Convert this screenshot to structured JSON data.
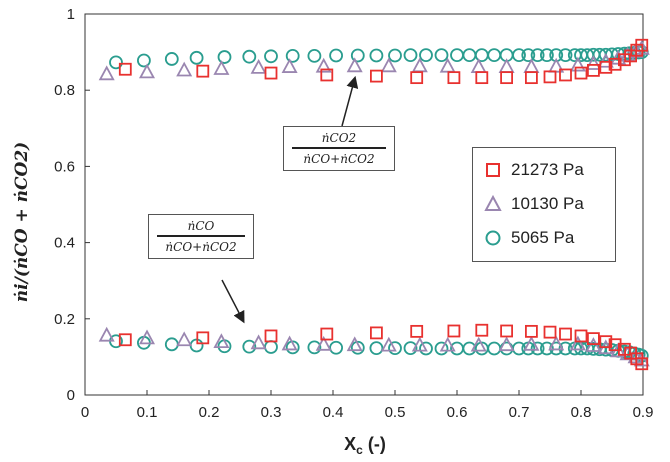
{
  "chart_data": {
    "type": "scatter",
    "xlabel": "X",
    "xlabel_sub": "c",
    "xlabel_unit": " (-)",
    "ylabel": "ṅi/(ṅCO + ṅCO2)",
    "xlim": [
      0,
      0.9
    ],
    "ylim": [
      0,
      1
    ],
    "xticks": [
      "0",
      "0.1",
      "0.2",
      "0.3",
      "0.4",
      "0.5",
      "0.6",
      "0.7",
      "0.8",
      "0.9"
    ],
    "yticks": [
      "0",
      "0.2",
      "0.4",
      "0.6",
      "0.8",
      "1"
    ],
    "grid": false,
    "legend_position": "right",
    "series": [
      {
        "name": "21273 Pa",
        "marker": "square",
        "color": "#e8312f",
        "upper": {
          "x": [
            0.065,
            0.19,
            0.3,
            0.39,
            0.47,
            0.535,
            0.595,
            0.64,
            0.68,
            0.72,
            0.75,
            0.775,
            0.8,
            0.82,
            0.84,
            0.855,
            0.87,
            0.88,
            0.89,
            0.898
          ],
          "y": [
            0.855,
            0.85,
            0.845,
            0.84,
            0.837,
            0.833,
            0.833,
            0.833,
            0.833,
            0.833,
            0.835,
            0.84,
            0.845,
            0.852,
            0.86,
            0.868,
            0.88,
            0.89,
            0.905,
            0.918
          ]
        },
        "lower": {
          "x": [
            0.065,
            0.19,
            0.3,
            0.39,
            0.47,
            0.535,
            0.595,
            0.64,
            0.68,
            0.72,
            0.75,
            0.775,
            0.8,
            0.82,
            0.84,
            0.855,
            0.87,
            0.88,
            0.89,
            0.898
          ],
          "y": [
            0.145,
            0.15,
            0.155,
            0.16,
            0.163,
            0.167,
            0.168,
            0.17,
            0.168,
            0.167,
            0.165,
            0.16,
            0.155,
            0.148,
            0.14,
            0.132,
            0.12,
            0.11,
            0.095,
            0.082
          ]
        }
      },
      {
        "name": "10130 Pa",
        "marker": "triangle",
        "color": "#9a86b0",
        "upper": {
          "x": [
            0.035,
            0.1,
            0.16,
            0.22,
            0.28,
            0.33,
            0.385,
            0.435,
            0.49,
            0.54,
            0.585,
            0.635,
            0.68,
            0.72,
            0.76,
            0.795,
            0.82,
            0.84,
            0.86,
            0.875,
            0.888,
            0.898
          ],
          "y": [
            0.843,
            0.848,
            0.853,
            0.857,
            0.86,
            0.862,
            0.863,
            0.864,
            0.864,
            0.864,
            0.863,
            0.862,
            0.862,
            0.862,
            0.863,
            0.866,
            0.87,
            0.876,
            0.884,
            0.892,
            0.902,
            0.91
          ]
        },
        "lower": {
          "x": [
            0.035,
            0.1,
            0.16,
            0.22,
            0.28,
            0.33,
            0.385,
            0.435,
            0.49,
            0.54,
            0.585,
            0.635,
            0.68,
            0.72,
            0.76,
            0.795,
            0.82,
            0.84,
            0.86,
            0.875,
            0.888,
            0.898
          ],
          "y": [
            0.157,
            0.15,
            0.145,
            0.14,
            0.137,
            0.134,
            0.133,
            0.132,
            0.131,
            0.131,
            0.131,
            0.131,
            0.132,
            0.133,
            0.134,
            0.134,
            0.13,
            0.124,
            0.116,
            0.108,
            0.1,
            0.092
          ]
        }
      },
      {
        "name": "5065 Pa",
        "marker": "circle",
        "color": "#2a9d8f",
        "upper": {
          "x": [
            0.05,
            0.095,
            0.14,
            0.18,
            0.225,
            0.265,
            0.3,
            0.335,
            0.37,
            0.405,
            0.44,
            0.47,
            0.5,
            0.525,
            0.55,
            0.575,
            0.6,
            0.62,
            0.64,
            0.66,
            0.68,
            0.7,
            0.715,
            0.73,
            0.745,
            0.76,
            0.775,
            0.79,
            0.8,
            0.81,
            0.82,
            0.83,
            0.84,
            0.85,
            0.86,
            0.87,
            0.878,
            0.886,
            0.893,
            0.898
          ],
          "y": [
            0.873,
            0.878,
            0.882,
            0.885,
            0.887,
            0.888,
            0.889,
            0.89,
            0.89,
            0.891,
            0.891,
            0.891,
            0.891,
            0.892,
            0.892,
            0.892,
            0.892,
            0.892,
            0.892,
            0.892,
            0.892,
            0.892,
            0.892,
            0.892,
            0.892,
            0.892,
            0.892,
            0.892,
            0.892,
            0.892,
            0.893,
            0.893,
            0.893,
            0.894,
            0.895,
            0.896,
            0.897,
            0.898,
            0.899,
            0.9
          ]
        },
        "lower": {
          "x": [
            0.05,
            0.095,
            0.14,
            0.18,
            0.225,
            0.265,
            0.3,
            0.335,
            0.37,
            0.405,
            0.44,
            0.47,
            0.5,
            0.525,
            0.55,
            0.575,
            0.6,
            0.62,
            0.64,
            0.66,
            0.68,
            0.7,
            0.715,
            0.73,
            0.745,
            0.76,
            0.775,
            0.79,
            0.8,
            0.81,
            0.82,
            0.83,
            0.84,
            0.85,
            0.86,
            0.87,
            0.878,
            0.886,
            0.893,
            0.898
          ],
          "y": [
            0.141,
            0.137,
            0.133,
            0.13,
            0.128,
            0.127,
            0.126,
            0.125,
            0.125,
            0.124,
            0.124,
            0.123,
            0.123,
            0.123,
            0.122,
            0.122,
            0.122,
            0.122,
            0.122,
            0.122,
            0.122,
            0.122,
            0.122,
            0.122,
            0.122,
            0.122,
            0.122,
            0.122,
            0.122,
            0.122,
            0.121,
            0.12,
            0.119,
            0.118,
            0.116,
            0.114,
            0.112,
            0.109,
            0.106,
            0.103
          ]
        }
      }
    ],
    "annotations": [
      {
        "numerator": "ṅCO2",
        "denominator": "ṅCO+ṅCO2",
        "points_to": "upper",
        "arrow_tip": [
          0.435,
          0.83
        ]
      },
      {
        "numerator": "ṅCO",
        "denominator": "ṅCO+ṅCO2",
        "points_to": "lower",
        "arrow_tip": [
          0.255,
          0.195
        ]
      }
    ]
  }
}
